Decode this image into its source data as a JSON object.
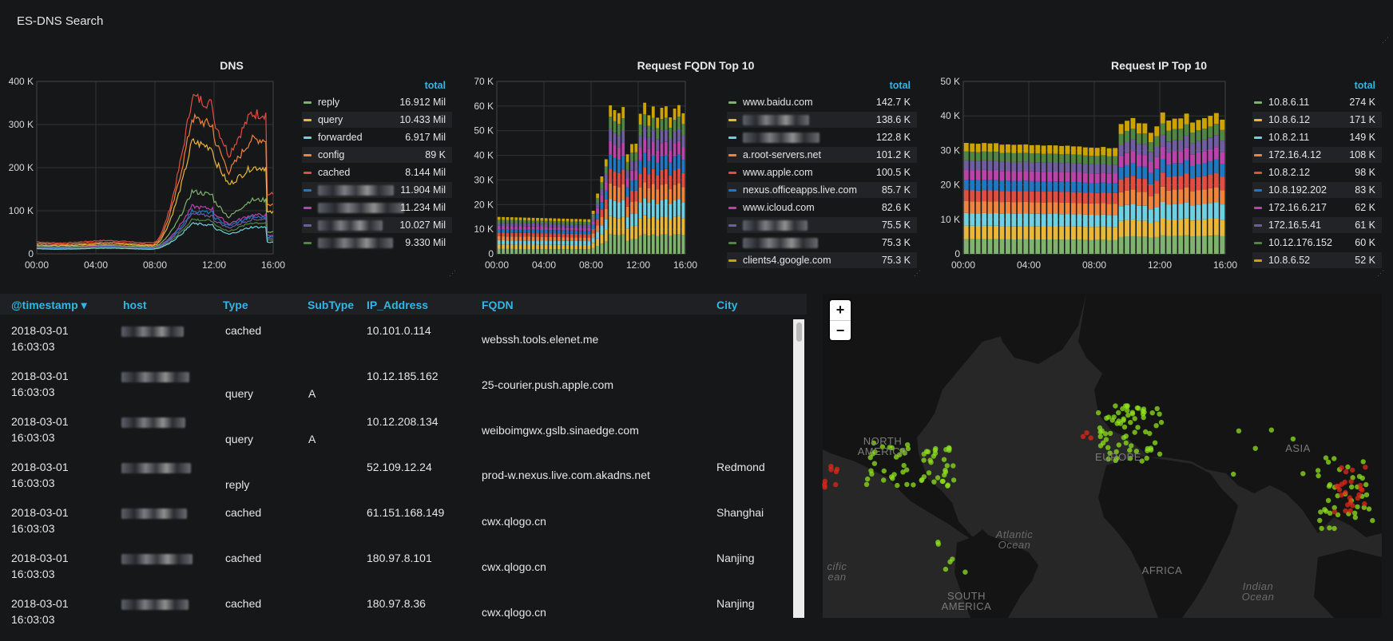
{
  "dashboard": {
    "title": "ES-DNS Search"
  },
  "charts": {
    "dns": {
      "title": "DNS",
      "legend_header": "total",
      "y_ticks": [
        "400 K",
        "300 K",
        "200 K",
        "100 K",
        "0"
      ],
      "x_ticks": [
        "00:00",
        "04:00",
        "08:00",
        "12:00",
        "16:00"
      ],
      "legend": [
        {
          "name": "reply",
          "value": "16.912 Mil",
          "color": "#7eb26d"
        },
        {
          "name": "query",
          "value": "10.433 Mil",
          "color": "#eab839"
        },
        {
          "name": "forwarded",
          "value": "6.917 Mil",
          "color": "#6ed0e0"
        },
        {
          "name": "config",
          "value": "89 K",
          "color": "#ef843c"
        },
        {
          "name": "cached",
          "value": "8.144 Mil",
          "color": "#e24d42"
        },
        {
          "name": "",
          "value": "11.904 Mil",
          "color": "#1f78c1"
        },
        {
          "name": "",
          "value": "11.234 Mil",
          "color": "#ba43a9"
        },
        {
          "name": "",
          "value": "10.027 Mil",
          "color": "#705da0"
        },
        {
          "name": "",
          "value": "9.330 Mil",
          "color": "#508642"
        }
      ]
    },
    "fqdn": {
      "title": "Request FQDN Top 10",
      "legend_header": "total",
      "y_ticks": [
        "70 K",
        "60 K",
        "50 K",
        "40 K",
        "30 K",
        "20 K",
        "10 K",
        "0"
      ],
      "x_ticks": [
        "00:00",
        "04:00",
        "08:00",
        "12:00",
        "16:00"
      ],
      "legend": [
        {
          "name": "www.baidu.com",
          "value": "142.7 K",
          "color": "#7eb26d"
        },
        {
          "name": "",
          "value": "138.6 K",
          "color": "#eab839"
        },
        {
          "name": "",
          "value": "122.8 K",
          "color": "#6ed0e0"
        },
        {
          "name": "a.root-servers.net",
          "value": "101.2 K",
          "color": "#ef843c"
        },
        {
          "name": "www.apple.com",
          "value": "100.5 K",
          "color": "#e24d42"
        },
        {
          "name": "nexus.officeapps.live.com",
          "value": "85.7 K",
          "color": "#1f78c1"
        },
        {
          "name": "www.icloud.com",
          "value": "82.6 K",
          "color": "#ba43a9"
        },
        {
          "name": "",
          "value": "75.5 K",
          "color": "#705da0"
        },
        {
          "name": "",
          "value": "75.3 K",
          "color": "#508642"
        },
        {
          "name": "clients4.google.com",
          "value": "75.3 K",
          "color": "#cca300"
        }
      ]
    },
    "ip": {
      "title": "Request IP Top 10",
      "legend_header": "total",
      "y_ticks": [
        "50 K",
        "40 K",
        "30 K",
        "20 K",
        "10 K",
        "0"
      ],
      "x_ticks": [
        "00:00",
        "04:00",
        "08:00",
        "12:00",
        "16:00"
      ],
      "legend": [
        {
          "name": "10.8.6.11",
          "value": "274 K",
          "color": "#7eb26d"
        },
        {
          "name": "10.8.6.12",
          "value": "171 K",
          "color": "#eab839"
        },
        {
          "name": "10.8.2.11",
          "value": "149 K",
          "color": "#6ed0e0"
        },
        {
          "name": "172.16.4.12",
          "value": "108 K",
          "color": "#ef843c"
        },
        {
          "name": "10.8.2.12",
          "value": "98 K",
          "color": "#e24d42"
        },
        {
          "name": "10.8.192.202",
          "value": "83 K",
          "color": "#1f78c1"
        },
        {
          "name": "172.16.6.217",
          "value": "62 K",
          "color": "#ba43a9"
        },
        {
          "name": "172.16.5.41",
          "value": "61 K",
          "color": "#705da0"
        },
        {
          "name": "10.12.176.152",
          "value": "60 K",
          "color": "#508642"
        },
        {
          "name": "10.8.6.52",
          "value": "52 K",
          "color": "#cca300"
        }
      ]
    }
  },
  "table": {
    "columns": [
      "@timestamp",
      "host",
      "Type",
      "SubType",
      "IP_Address",
      "FQDN",
      "City"
    ],
    "sort_indicator": "▾",
    "rows": [
      {
        "date": "2018-03-01",
        "time": "16:03:03",
        "type": "cached",
        "subtype": "",
        "ip": "10.101.0.114",
        "fqdn": "webssh.tools.elenet.me",
        "city": ""
      },
      {
        "date": "2018-03-01",
        "time": "16:03:03",
        "type": "query",
        "subtype": "A",
        "ip": "10.12.185.162",
        "fqdn": "25-courier.push.apple.com",
        "city": ""
      },
      {
        "date": "2018-03-01",
        "time": "16:03:03",
        "type": "query",
        "subtype": "A",
        "ip": "10.12.208.134",
        "fqdn": "weiboimgwx.gslb.sinaedge.com",
        "city": ""
      },
      {
        "date": "2018-03-01",
        "time": "16:03:03",
        "type": "reply",
        "subtype": "",
        "ip": "52.109.12.24",
        "fqdn": "prod-w.nexus.live.com.akadns.net",
        "city": "Redmond"
      },
      {
        "date": "2018-03-01",
        "time": "16:03:03",
        "type": "cached",
        "subtype": "",
        "ip": "61.151.168.149",
        "fqdn": "cwx.qlogo.cn",
        "city": "Shanghai"
      },
      {
        "date": "2018-03-01",
        "time": "16:03:03",
        "type": "cached",
        "subtype": "",
        "ip": "180.97.8.101",
        "fqdn": "cwx.qlogo.cn",
        "city": "Nanjing"
      },
      {
        "date": "2018-03-01",
        "time": "16:03:03",
        "type": "cached",
        "subtype": "",
        "ip": "180.97.8.36",
        "fqdn": "cwx.qlogo.cn",
        "city": "Nanjing"
      }
    ]
  },
  "map": {
    "zoom_in": "+",
    "zoom_out": "−",
    "labels": {
      "north_america": "NORTH\nAMERICA",
      "europe": "EUROPE",
      "asia": "ASIA",
      "africa": "AFRICA",
      "south_america": "SOUTH\nAMERICA",
      "atlantic": "Atlantic\nOcean",
      "pacific": "cific\nean",
      "indian": "Indian\nOcean"
    },
    "point_colors": {
      "low": "#8ee21c",
      "high": "#e0281a"
    }
  },
  "chart_data": [
    {
      "type": "line",
      "title": "DNS",
      "x": [
        "00:00",
        "04:00",
        "08:00",
        "12:00",
        "16:00"
      ],
      "ylim": [
        0,
        400000
      ],
      "series": [
        {
          "name": "cached",
          "values": [
            25000,
            22000,
            28000,
            330000,
            310000
          ]
        },
        {
          "name": "config",
          "values": [
            22000,
            20000,
            25000,
            290000,
            250000
          ]
        },
        {
          "name": "query",
          "values": [
            20000,
            18000,
            22000,
            240000,
            200000
          ]
        },
        {
          "name": "reply",
          "values": [
            15000,
            14000,
            17000,
            120000,
            110000
          ]
        }
      ]
    },
    {
      "type": "bar",
      "title": "Request FQDN Top 10",
      "x": [
        "00:00",
        "04:00",
        "08:00",
        "12:00",
        "16:00"
      ],
      "ylim": [
        0,
        70000
      ],
      "series": [
        {
          "name": "total",
          "values": [
            15000,
            14000,
            14500,
            45000,
            60000
          ]
        }
      ]
    },
    {
      "type": "bar",
      "title": "Request IP Top 10",
      "x": [
        "00:00",
        "04:00",
        "08:00",
        "12:00",
        "16:00"
      ],
      "ylim": [
        0,
        50000
      ],
      "series": [
        {
          "name": "total",
          "values": [
            32000,
            31500,
            31000,
            36000,
            40000
          ]
        }
      ]
    }
  ]
}
